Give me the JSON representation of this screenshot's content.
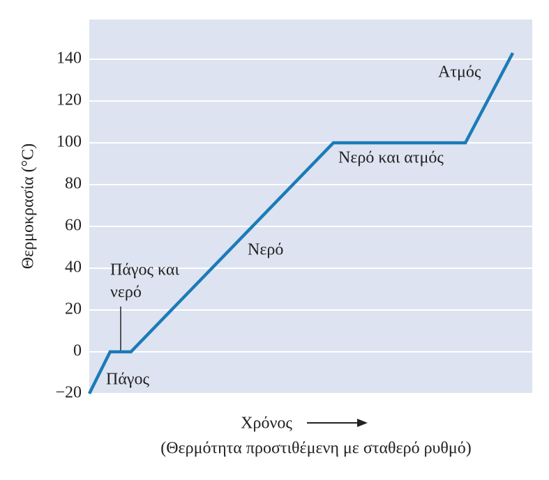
{
  "chart_data": {
    "type": "line",
    "y_label": "Θερμοκρασία (°C)",
    "x_label": "Χρόνος",
    "subtitle": "(Θερμότητα προστιθέμενη με σταθερό ρυθμό)",
    "x": [
      0,
      4.7,
      9.4,
      55.1,
      84.9,
      95.6
    ],
    "values": [
      -20,
      0,
      0,
      100,
      100,
      143
    ],
    "color": "#1b7bb8",
    "xlim": [
      0,
      100
    ],
    "ylim": [
      -20,
      159
    ],
    "yticks": [
      {
        "value": -20,
        "label": "−20"
      },
      0,
      20,
      40,
      60,
      80,
      100,
      120,
      140
    ],
    "grid": true,
    "annotations": [
      "Πάγος",
      "Πάγος και",
      "νερό",
      "Νερό",
      "Νερό και ατμός",
      "Ατμός"
    ]
  }
}
